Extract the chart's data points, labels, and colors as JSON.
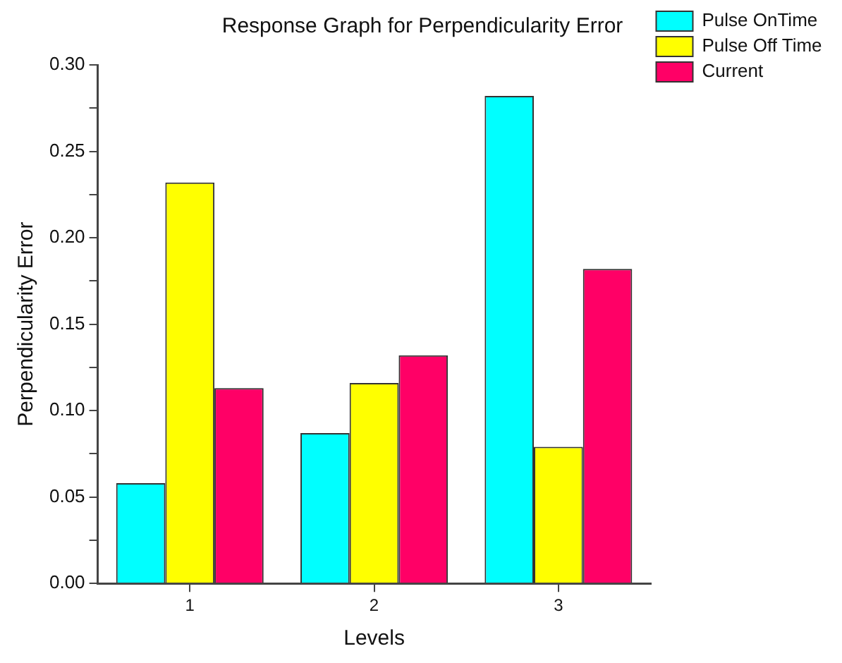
{
  "chart_data": {
    "type": "bar",
    "title": "Response Graph for Perpendicularity Error",
    "xlabel": "Levels",
    "ylabel": "Perpendicularity Error",
    "categories": [
      "1",
      "2",
      "3"
    ],
    "series": [
      {
        "name": "Pulse OnTime",
        "color": "#00ffff",
        "values": [
          0.058,
          0.087,
          0.282
        ]
      },
      {
        "name": "Pulse Off Time",
        "color": "#ffff00",
        "values": [
          0.232,
          0.116,
          0.079
        ]
      },
      {
        "name": "Current",
        "color": "#ff0066",
        "values": [
          0.113,
          0.132,
          0.182
        ]
      }
    ],
    "ylim": [
      0,
      0.3
    ],
    "yticks": [
      {
        "value": 0,
        "label": "0.00"
      },
      {
        "value": 0.025,
        "label": null
      },
      {
        "value": 0.05,
        "label": "0.05"
      },
      {
        "value": 0.075,
        "label": null
      },
      {
        "value": 0.1,
        "label": "0.10"
      },
      {
        "value": 0.125,
        "label": null
      },
      {
        "value": 0.15,
        "label": "0.15"
      },
      {
        "value": 0.175,
        "label": null
      },
      {
        "value": 0.2,
        "label": "0.20"
      },
      {
        "value": 0.225,
        "label": null
      },
      {
        "value": 0.25,
        "label": "0.25"
      },
      {
        "value": 0.275,
        "label": null
      },
      {
        "value": 0.3,
        "label": "0.30"
      }
    ],
    "grid": false,
    "legend": "top right"
  }
}
